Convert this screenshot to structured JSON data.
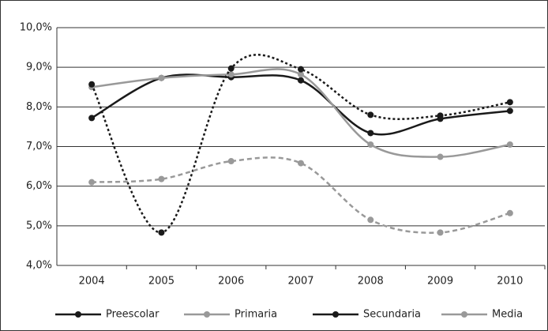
{
  "chart_data": {
    "type": "line",
    "categories": [
      "2004",
      "2005",
      "2006",
      "2007",
      "2008",
      "2009",
      "2010"
    ],
    "series": [
      {
        "name": "Preescolar",
        "color": "#1a1a1a",
        "dash": "solid",
        "values": [
          7.72,
          8.73,
          8.75,
          8.67,
          7.34,
          7.7,
          7.9
        ]
      },
      {
        "name": "Primaria",
        "color": "#999999",
        "dash": "solid",
        "values": [
          8.5,
          8.73,
          8.82,
          8.82,
          7.05,
          6.74,
          7.05
        ]
      },
      {
        "name": "Secundaria",
        "color": "#1a1a1a",
        "dash": "dotted",
        "values": [
          8.57,
          4.83,
          8.97,
          8.95,
          7.8,
          7.78,
          8.12
        ]
      },
      {
        "name": "Media",
        "color": "#999999",
        "dash": "dashed",
        "values": [
          6.1,
          6.18,
          6.63,
          6.58,
          5.15,
          4.83,
          5.32
        ]
      }
    ],
    "ylim": [
      4,
      10
    ],
    "yticks": [
      {
        "value": 4,
        "label": "4,0%"
      },
      {
        "value": 5,
        "label": "5,0%"
      },
      {
        "value": 6,
        "label": "6,0%"
      },
      {
        "value": 7,
        "label": "7,0%"
      },
      {
        "value": 8,
        "label": "8,0%"
      },
      {
        "value": 9,
        "label": "9,0%"
      },
      {
        "value": 10,
        "label": "10,0%"
      }
    ],
    "grid": true,
    "legend": "bottom"
  }
}
